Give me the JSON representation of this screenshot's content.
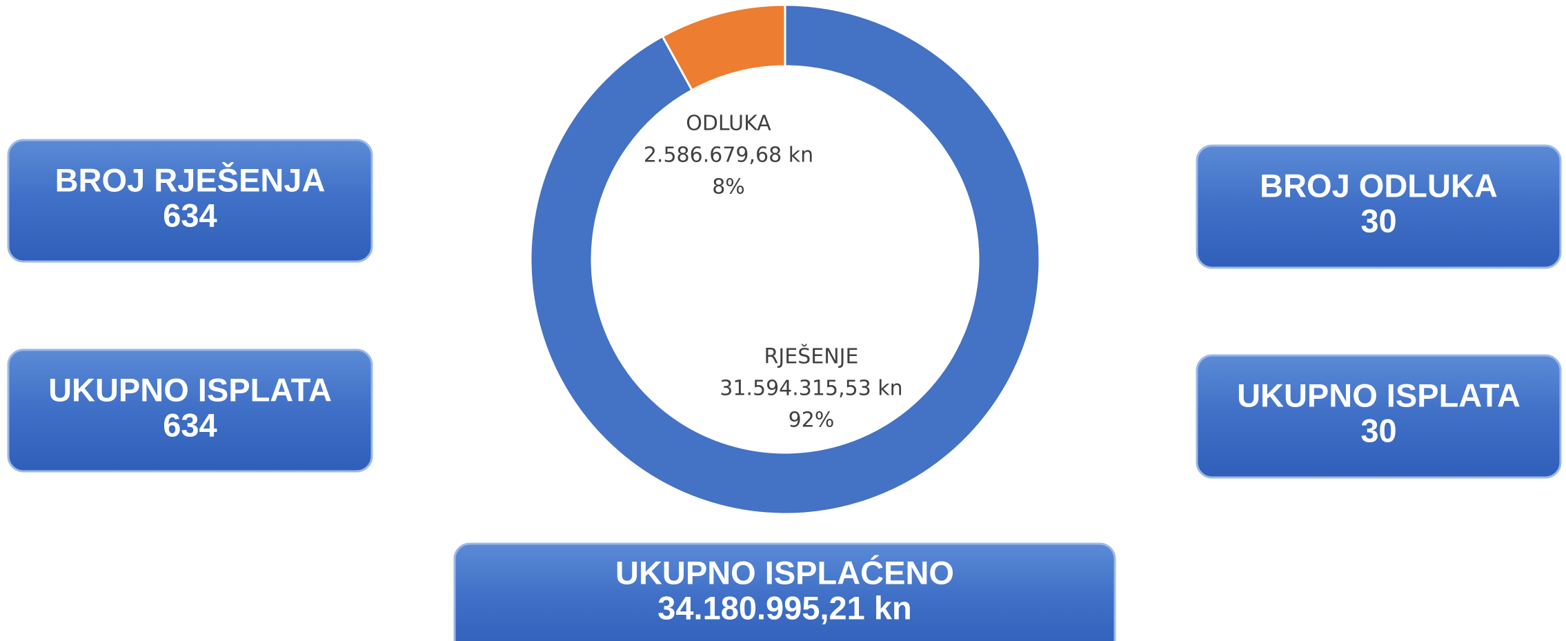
{
  "chart_data": {
    "type": "pie",
    "donut": true,
    "categories": [
      "RJEŠENJE",
      "ODLUKA"
    ],
    "values": [
      92,
      8
    ],
    "value_labels": [
      "92%",
      "8%"
    ],
    "amounts": [
      "31.594.315,53 kn",
      "2.586.679,68 kn"
    ],
    "colors": [
      "#4472c4",
      "#ed7d31"
    ]
  },
  "boxes": [
    {
      "title": "BROJ RJEŠENJA",
      "value": 634
    },
    {
      "title": "UKUPNO ISPLATA",
      "value": 634
    },
    {
      "title": "BROJ ODLUKA",
      "value": 30
    },
    {
      "title": "UKUPNO ISPLATA",
      "value": 30
    },
    {
      "title": "UKUPNO ISPLAĆENO",
      "value": "34.180.995,21 kn"
    }
  ]
}
